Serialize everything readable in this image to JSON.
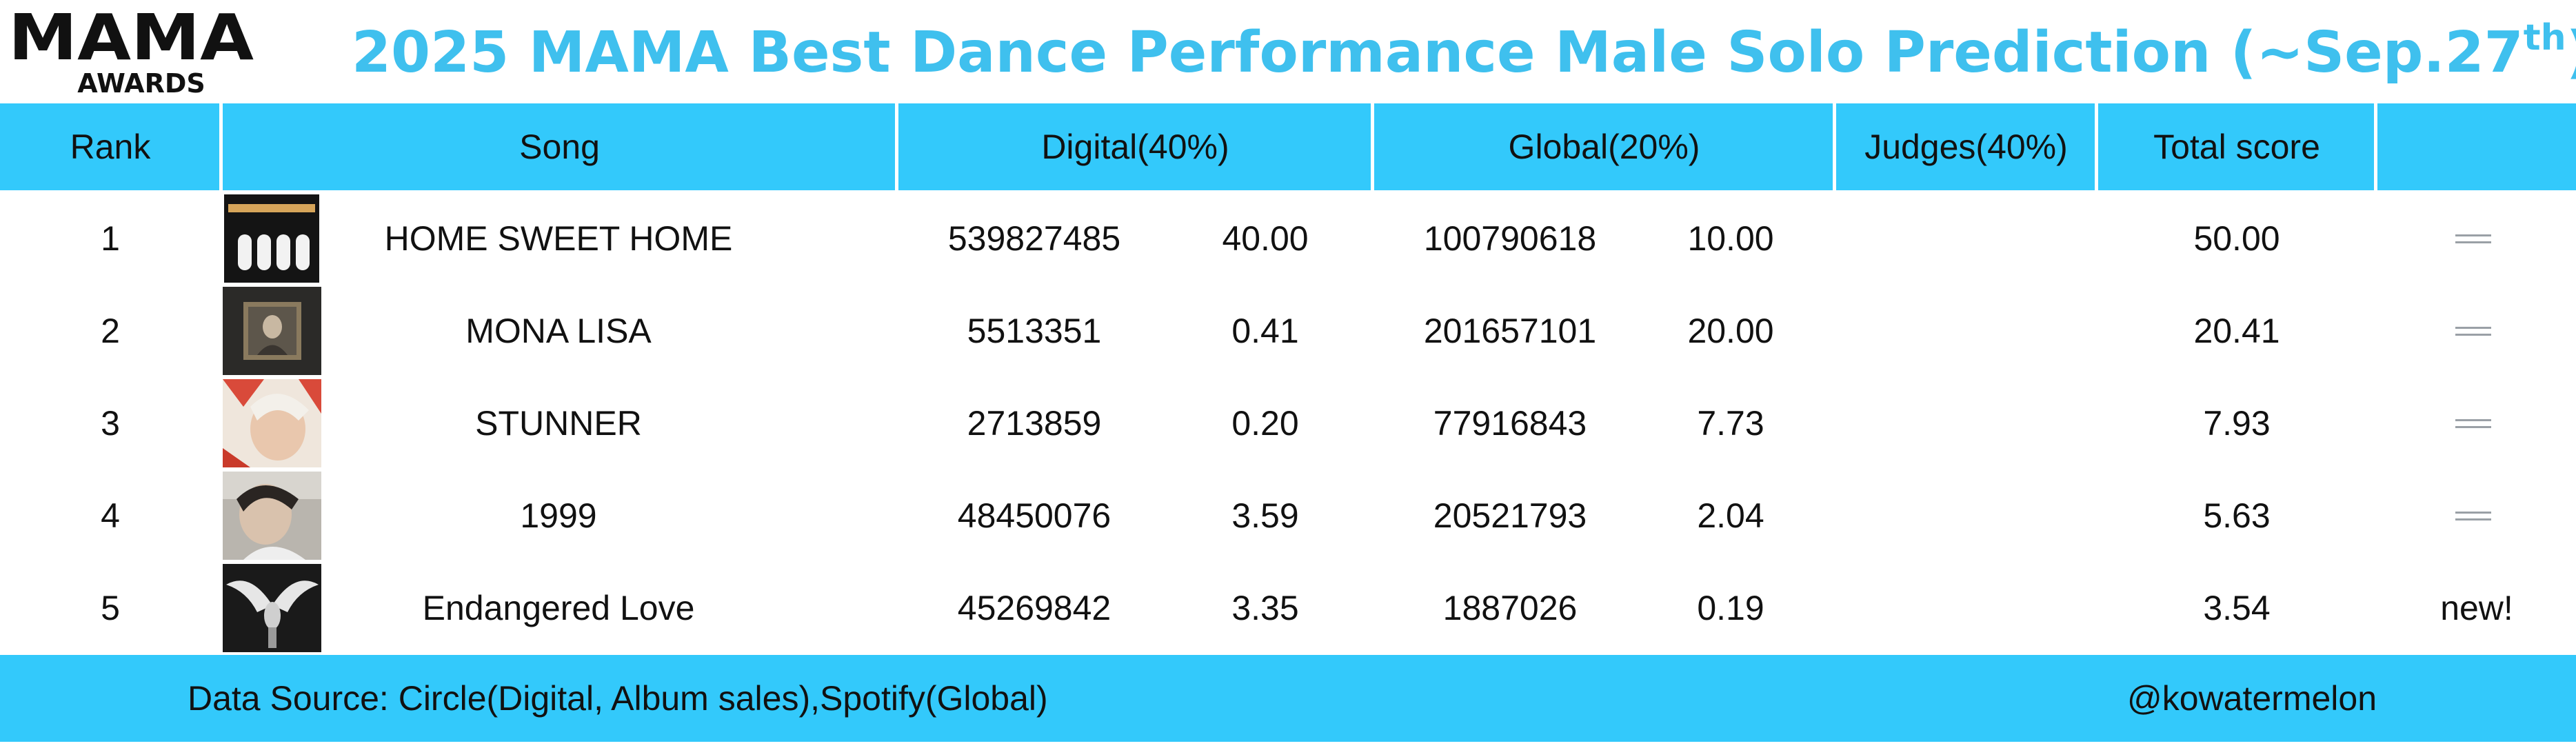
{
  "logo": {
    "wordmark": "MAMA",
    "subtext": "AWARDS"
  },
  "title": {
    "main": "2025 MAMA Best Dance Performance Male Solo Prediction (~Sep.27",
    "sup": "th",
    "end": ")"
  },
  "colors": {
    "accent": "#33c9fb",
    "title": "#3fc0ee"
  },
  "table": {
    "headers": {
      "rank": "Rank",
      "song": "Song",
      "digital": "Digital(40%)",
      "global": "Global(20%)",
      "judges": "Judges(40%)",
      "total": "Total score",
      "change": ""
    },
    "rows": [
      {
        "rank": "1",
        "song": "HOME SWEET HOME",
        "digital_value": "539827485",
        "digital_score": "40.00",
        "global_value": "100790618",
        "global_score": "10.00",
        "judges": "",
        "total": "50.00",
        "change": "",
        "change_icon": "equal-icon"
      },
      {
        "rank": "2",
        "song": "MONA LISA",
        "digital_value": "5513351",
        "digital_score": "0.41",
        "global_value": "201657101",
        "global_score": "20.00",
        "judges": "",
        "total": "20.41",
        "change": "",
        "change_icon": "equal-icon"
      },
      {
        "rank": "3",
        "song": "STUNNER",
        "digital_value": "2713859",
        "digital_score": "0.20",
        "global_value": "77916843",
        "global_score": "7.73",
        "judges": "",
        "total": "7.93",
        "change": "",
        "change_icon": "equal-icon"
      },
      {
        "rank": "4",
        "song": "1999",
        "digital_value": "48450076",
        "digital_score": "3.59",
        "global_value": "20521793",
        "global_score": "2.04",
        "judges": "",
        "total": "5.63",
        "change": "",
        "change_icon": "equal-icon"
      },
      {
        "rank": "5",
        "song": "Endangered Love",
        "digital_value": "45269842",
        "digital_score": "3.35",
        "global_value": "1887026",
        "global_score": "0.19",
        "judges": "",
        "total": "3.54",
        "change": "new!",
        "change_icon": ""
      }
    ]
  },
  "footer": {
    "source": "Data Source: Circle(Digital, Album sales),Spotify(Global)",
    "credit": "@kowatermelon"
  }
}
